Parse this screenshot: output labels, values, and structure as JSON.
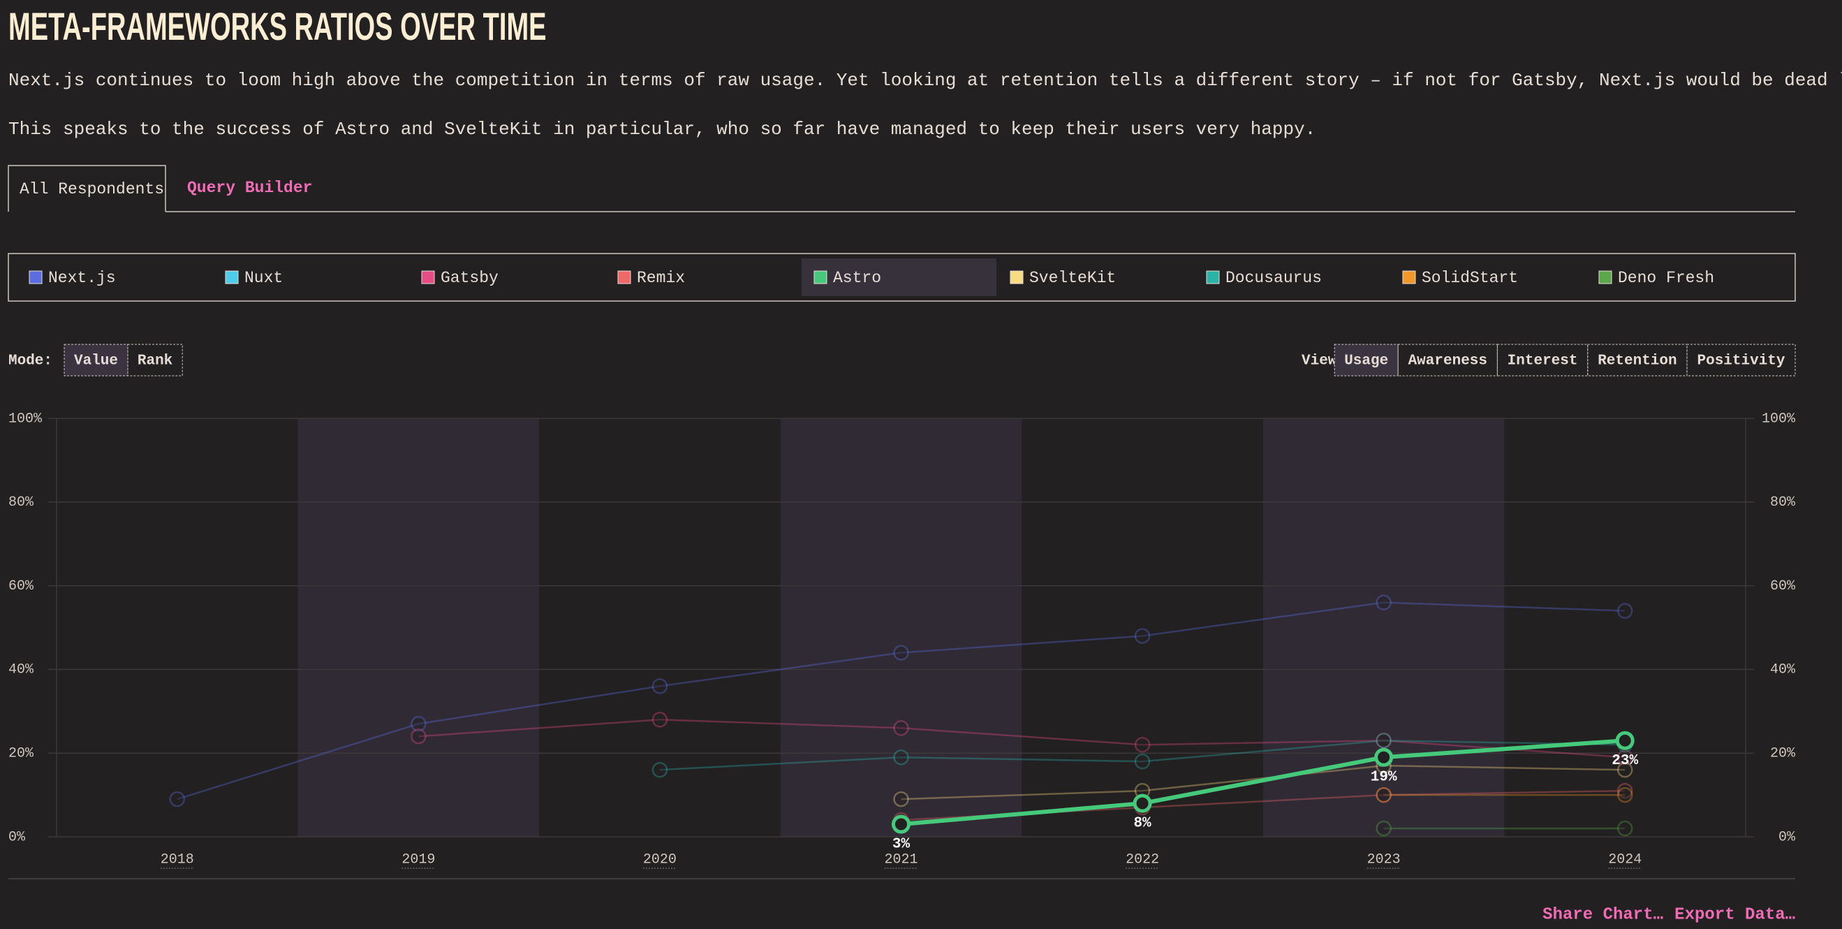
{
  "header": {
    "title": "META-FRAMEWORKS RATIOS OVER TIME",
    "paragraphs": [
      "Next.js continues to loom high above the competition in terms of raw usage. Yet looking at retention tells a different story – if not for Gatsby, Next.js would be dead last.",
      "This speaks to the success of Astro and SvelteKit in particular, who so far have managed to keep their users very happy."
    ]
  },
  "tabs": [
    "All Respondents",
    "Query Builder"
  ],
  "mode": {
    "label": "Mode:",
    "options": [
      "Value",
      "Rank"
    ]
  },
  "view": {
    "label": "View:",
    "options": [
      "Usage",
      "Awareness",
      "Interest",
      "Retention",
      "Positivity"
    ]
  },
  "footer": [
    "Share Chart…",
    "Export Data…"
  ],
  "chart_data": {
    "type": "line",
    "categories": [
      "2018",
      "2019",
      "2020",
      "2021",
      "2022",
      "2023",
      "2024"
    ],
    "series": [
      {
        "name": "Next.js",
        "color": "#5b6ee1",
        "values": [
          9,
          27,
          36,
          44,
          48,
          56,
          54
        ]
      },
      {
        "name": "Nuxt",
        "color": "#4ecbe8",
        "values": [
          null,
          null,
          null,
          null,
          null,
          null,
          null
        ]
      },
      {
        "name": "Gatsby",
        "color": "#e84c85",
        "values": [
          null,
          24,
          28,
          26,
          22,
          23,
          19
        ]
      },
      {
        "name": "Remix",
        "color": "#f0686a",
        "values": [
          null,
          null,
          null,
          4,
          7,
          10,
          11
        ]
      },
      {
        "name": "Astro",
        "color": "#45c97a",
        "values": [
          null,
          null,
          null,
          3,
          8,
          19,
          23
        ],
        "value_labels": [
          "3%",
          "8%",
          "19%",
          "23%"
        ]
      },
      {
        "name": "SvelteKit",
        "color": "#f7dc82",
        "values": [
          null,
          null,
          null,
          9,
          11,
          17,
          16
        ]
      },
      {
        "name": "Docusaurus",
        "color": "#2bb3a8",
        "values": [
          null,
          null,
          16,
          19,
          18,
          23,
          22
        ]
      },
      {
        "name": "SolidStart",
        "color": "#f0982a",
        "values": [
          null,
          null,
          null,
          null,
          null,
          10,
          10
        ]
      },
      {
        "name": "Deno Fresh",
        "color": "#5aa84a",
        "values": [
          null,
          null,
          null,
          null,
          null,
          2,
          2
        ]
      }
    ],
    "highlight": "Astro",
    "ylim": [
      0,
      100
    ],
    "yticks": [
      {
        "value": 0,
        "label": "0%"
      },
      {
        "value": 20,
        "label": "20%"
      },
      {
        "value": 40,
        "label": "40%"
      },
      {
        "value": 60,
        "label": "60%"
      },
      {
        "value": 80,
        "label": "80%"
      },
      {
        "value": 100,
        "label": "100%"
      }
    ],
    "grid": true
  }
}
